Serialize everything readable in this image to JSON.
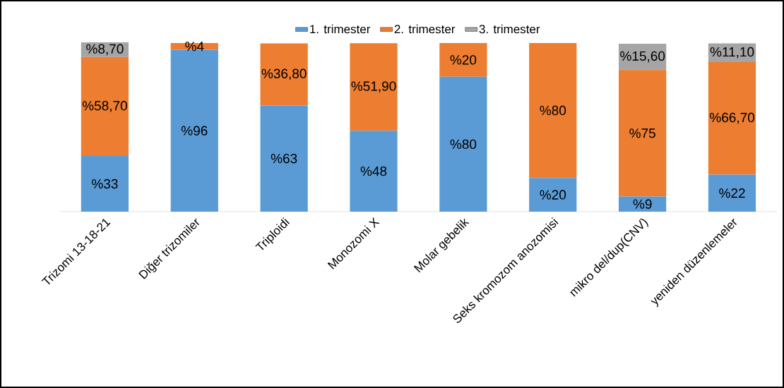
{
  "chart_data": {
    "type": "bar",
    "stacked": true,
    "legend": "top",
    "tick_labels": "x",
    "categories": [
      "Trizomi 13-18-21",
      "Diğer trizomiler",
      "Triploidi",
      "Monozomi X",
      "Molar gebelik",
      "Seks kromozom anozomisi",
      "mikro del/dup(CNV)",
      "yeniden düzenlemeler"
    ],
    "series": [
      {
        "name": "1. trimester",
        "color": "#5b9bd5",
        "values": [
          33,
          96,
          63,
          48,
          80,
          20,
          9,
          22
        ],
        "value_labels": [
          "%33",
          "%96",
          "%63",
          "%48",
          "%80",
          "%20",
          "%9",
          "%22"
        ]
      },
      {
        "name": "2. trimester",
        "color": "#ed7d31",
        "values": [
          58.7,
          4,
          36.8,
          51.9,
          20,
          80,
          75,
          66.7
        ],
        "value_labels": [
          "%58,70",
          "%4",
          "%36,80",
          "%51,90",
          "%20",
          "%80",
          "%75",
          "%66,70"
        ]
      },
      {
        "name": "3. trimester",
        "color": "#a5a5a5",
        "values": [
          8.7,
          null,
          null,
          null,
          null,
          null,
          15.6,
          11.1
        ],
        "value_labels": [
          "%8,70",
          null,
          null,
          null,
          null,
          null,
          "%15,60",
          "%11,10"
        ]
      }
    ]
  }
}
